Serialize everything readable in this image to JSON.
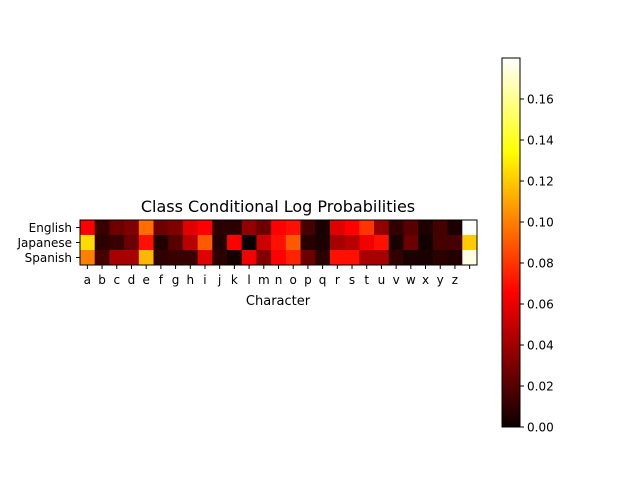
{
  "chart_data": {
    "type": "heatmap",
    "title": "Class Conditional Log Probabilities",
    "xlabel": "Character",
    "ylabel": "",
    "rows": [
      "English",
      "Japanese",
      "Spanish"
    ],
    "columns": [
      "a",
      "b",
      "c",
      "d",
      "e",
      "f",
      "g",
      "h",
      "i",
      "j",
      "k",
      "l",
      "m",
      "n",
      "o",
      "p",
      "q",
      "r",
      "s",
      "t",
      "u",
      "v",
      "w",
      "x",
      "y",
      "z",
      ""
    ],
    "values": [
      [
        0.065,
        0.012,
        0.025,
        0.03,
        0.095,
        0.025,
        0.03,
        0.055,
        0.065,
        0.008,
        0.008,
        0.035,
        0.025,
        0.065,
        0.07,
        0.015,
        0.004,
        0.055,
        0.065,
        0.08,
        0.035,
        0.01,
        0.02,
        0.005,
        0.015,
        0.004,
        0.18
      ],
      [
        0.125,
        0.008,
        0.012,
        0.025,
        0.07,
        0.006,
        0.02,
        0.045,
        0.09,
        0.006,
        0.065,
        0.0,
        0.05,
        0.07,
        0.09,
        0.007,
        0.004,
        0.04,
        0.045,
        0.06,
        0.07,
        0.004,
        0.025,
        0.002,
        0.015,
        0.015,
        0.12
      ],
      [
        0.1,
        0.015,
        0.04,
        0.04,
        0.115,
        0.01,
        0.012,
        0.012,
        0.055,
        0.008,
        0.002,
        0.06,
        0.03,
        0.065,
        0.075,
        0.025,
        0.008,
        0.07,
        0.07,
        0.04,
        0.04,
        0.01,
        0.004,
        0.004,
        0.008,
        0.006,
        0.175
      ]
    ],
    "colorbar": {
      "colormap": "hot",
      "min": 0.0,
      "max": 0.18,
      "ticks": [
        "0.00",
        "0.02",
        "0.04",
        "0.06",
        "0.08",
        "0.10",
        "0.12",
        "0.14",
        "0.16"
      ]
    },
    "grid": false,
    "legend": "none"
  }
}
